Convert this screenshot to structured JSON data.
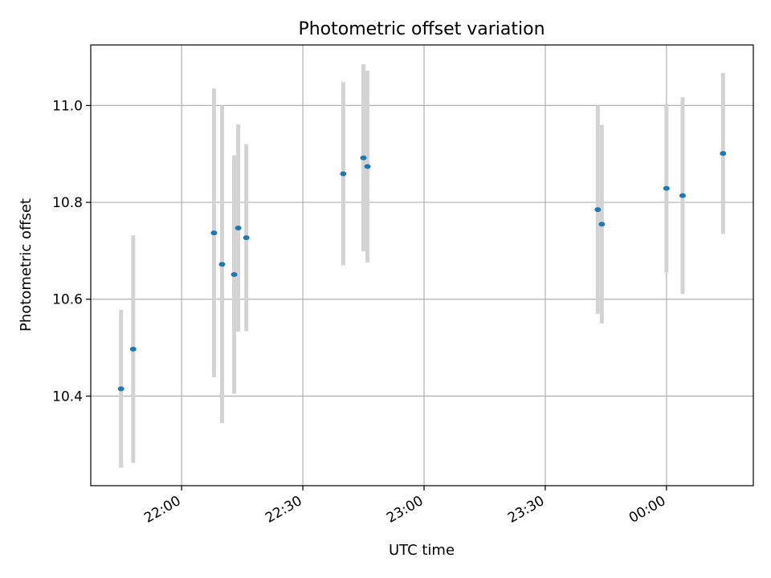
{
  "chart_data": {
    "type": "scatter",
    "title": "Photometric offset variation",
    "xlabel": "UTC time",
    "ylabel": "Photometric offset",
    "x_axis": {
      "type": "time",
      "range": [
        "21:37:30",
        "00:21:30"
      ],
      "ticks": [
        "22:00",
        "22:30",
        "23:00",
        "23:30",
        "00:00"
      ]
    },
    "y_axis": {
      "range": [
        10.215,
        11.125
      ],
      "ticks": [
        "10.4",
        "10.6",
        "10.8",
        "11.0"
      ]
    },
    "grid": true,
    "colors": {
      "point": "#1f77b4",
      "errorbar": "#d3d3d3",
      "grid": "#b0b0b0"
    },
    "points": [
      {
        "x": "21:45",
        "y": 10.415,
        "err": 0.163
      },
      {
        "x": "21:48",
        "y": 10.497,
        "err": 0.235
      },
      {
        "x": "22:08",
        "y": 10.737,
        "err": 0.298
      },
      {
        "x": "22:10",
        "y": 10.672,
        "err": 0.328
      },
      {
        "x": "22:13",
        "y": 10.651,
        "err": 0.246
      },
      {
        "x": "22:14",
        "y": 10.747,
        "err": 0.214
      },
      {
        "x": "22:16",
        "y": 10.727,
        "err": 0.193
      },
      {
        "x": "22:40",
        "y": 10.859,
        "err": 0.189
      },
      {
        "x": "22:45",
        "y": 10.892,
        "err": 0.193
      },
      {
        "x": "22:46",
        "y": 10.874,
        "err": 0.198
      },
      {
        "x": "23:43",
        "y": 10.785,
        "err": 0.215
      },
      {
        "x": "23:44",
        "y": 10.755,
        "err": 0.205
      },
      {
        "x": "00:00",
        "y": 10.829,
        "err": 0.174
      },
      {
        "x": "00:04",
        "y": 10.814,
        "err": 0.203
      },
      {
        "x": "00:14",
        "y": 10.901,
        "err": 0.166
      }
    ]
  }
}
